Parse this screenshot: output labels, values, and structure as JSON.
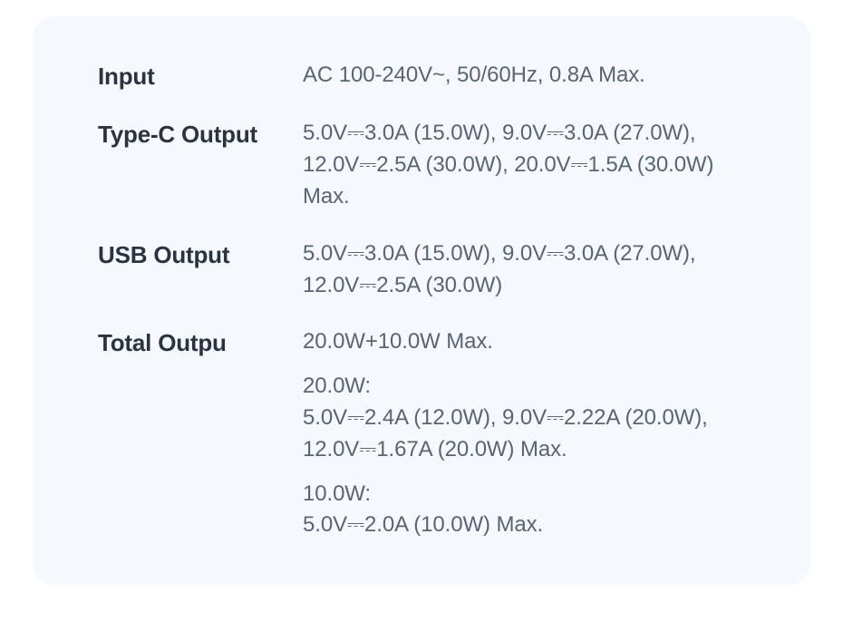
{
  "card": {
    "background_color": "#f5f9fd",
    "border_radius": 24
  },
  "typography": {
    "label_color": "#2b3340",
    "label_fontsize": 26,
    "label_fontweight": 700,
    "value_color": "#5a6472",
    "value_fontsize": 24,
    "value_fontweight": 400
  },
  "specs": {
    "input": {
      "label": "Input",
      "value": "AC 100-240V~, 50/60Hz, 0.8A Max."
    },
    "type_c": {
      "label": "Type-C Output",
      "value": "5.0V⎓3.0A (15.0W), 9.0V⎓3.0A (27.0W), 12.0V⎓2.5A (30.0W), 20.0V⎓1.5A (30.0W) Max."
    },
    "usb": {
      "label": "USB Output",
      "value": "5.0V⎓3.0A (15.0W), 9.0V⎓3.0A (27.0W), 12.0V⎓2.5A (30.0W)"
    },
    "total": {
      "label": "Total Outpu",
      "value": "20.0W+10.0W Max.",
      "sub1_title": "20.0W:",
      "sub1_body": "5.0V⎓2.4A (12.0W), 9.0V⎓2.22A (20.0W), 12.0V⎓1.67A (20.0W) Max.",
      "sub2_title": "10.0W:",
      "sub2_body": "5.0V⎓2.0A (10.0W) Max."
    }
  }
}
